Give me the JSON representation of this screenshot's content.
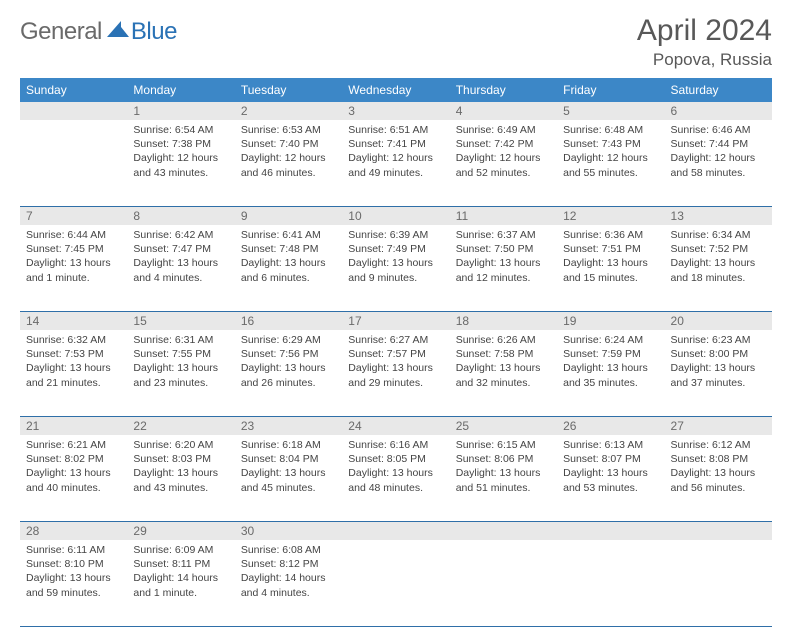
{
  "logo": {
    "word1": "General",
    "word2": "Blue"
  },
  "title": "April 2024",
  "location": "Popova, Russia",
  "colors": {
    "header_bg": "#3c87c7",
    "header_text": "#ffffff",
    "daynum_bg": "#e8e8e8",
    "daynum_text": "#6a6a6a",
    "rule": "#2f6fa8",
    "body_text": "#444444",
    "logo_gray": "#6a6a6a",
    "logo_blue": "#2a72b5"
  },
  "weekdays": [
    "Sunday",
    "Monday",
    "Tuesday",
    "Wednesday",
    "Thursday",
    "Friday",
    "Saturday"
  ],
  "weeks": [
    [
      null,
      {
        "n": "1",
        "sunrise": "6:54 AM",
        "sunset": "7:38 PM",
        "daylight": "12 hours and 43 minutes."
      },
      {
        "n": "2",
        "sunrise": "6:53 AM",
        "sunset": "7:40 PM",
        "daylight": "12 hours and 46 minutes."
      },
      {
        "n": "3",
        "sunrise": "6:51 AM",
        "sunset": "7:41 PM",
        "daylight": "12 hours and 49 minutes."
      },
      {
        "n": "4",
        "sunrise": "6:49 AM",
        "sunset": "7:42 PM",
        "daylight": "12 hours and 52 minutes."
      },
      {
        "n": "5",
        "sunrise": "6:48 AM",
        "sunset": "7:43 PM",
        "daylight": "12 hours and 55 minutes."
      },
      {
        "n": "6",
        "sunrise": "6:46 AM",
        "sunset": "7:44 PM",
        "daylight": "12 hours and 58 minutes."
      }
    ],
    [
      {
        "n": "7",
        "sunrise": "6:44 AM",
        "sunset": "7:45 PM",
        "daylight": "13 hours and 1 minute."
      },
      {
        "n": "8",
        "sunrise": "6:42 AM",
        "sunset": "7:47 PM",
        "daylight": "13 hours and 4 minutes."
      },
      {
        "n": "9",
        "sunrise": "6:41 AM",
        "sunset": "7:48 PM",
        "daylight": "13 hours and 6 minutes."
      },
      {
        "n": "10",
        "sunrise": "6:39 AM",
        "sunset": "7:49 PM",
        "daylight": "13 hours and 9 minutes."
      },
      {
        "n": "11",
        "sunrise": "6:37 AM",
        "sunset": "7:50 PM",
        "daylight": "13 hours and 12 minutes."
      },
      {
        "n": "12",
        "sunrise": "6:36 AM",
        "sunset": "7:51 PM",
        "daylight": "13 hours and 15 minutes."
      },
      {
        "n": "13",
        "sunrise": "6:34 AM",
        "sunset": "7:52 PM",
        "daylight": "13 hours and 18 minutes."
      }
    ],
    [
      {
        "n": "14",
        "sunrise": "6:32 AM",
        "sunset": "7:53 PM",
        "daylight": "13 hours and 21 minutes."
      },
      {
        "n": "15",
        "sunrise": "6:31 AM",
        "sunset": "7:55 PM",
        "daylight": "13 hours and 23 minutes."
      },
      {
        "n": "16",
        "sunrise": "6:29 AM",
        "sunset": "7:56 PM",
        "daylight": "13 hours and 26 minutes."
      },
      {
        "n": "17",
        "sunrise": "6:27 AM",
        "sunset": "7:57 PM",
        "daylight": "13 hours and 29 minutes."
      },
      {
        "n": "18",
        "sunrise": "6:26 AM",
        "sunset": "7:58 PM",
        "daylight": "13 hours and 32 minutes."
      },
      {
        "n": "19",
        "sunrise": "6:24 AM",
        "sunset": "7:59 PM",
        "daylight": "13 hours and 35 minutes."
      },
      {
        "n": "20",
        "sunrise": "6:23 AM",
        "sunset": "8:00 PM",
        "daylight": "13 hours and 37 minutes."
      }
    ],
    [
      {
        "n": "21",
        "sunrise": "6:21 AM",
        "sunset": "8:02 PM",
        "daylight": "13 hours and 40 minutes."
      },
      {
        "n": "22",
        "sunrise": "6:20 AM",
        "sunset": "8:03 PM",
        "daylight": "13 hours and 43 minutes."
      },
      {
        "n": "23",
        "sunrise": "6:18 AM",
        "sunset": "8:04 PM",
        "daylight": "13 hours and 45 minutes."
      },
      {
        "n": "24",
        "sunrise": "6:16 AM",
        "sunset": "8:05 PM",
        "daylight": "13 hours and 48 minutes."
      },
      {
        "n": "25",
        "sunrise": "6:15 AM",
        "sunset": "8:06 PM",
        "daylight": "13 hours and 51 minutes."
      },
      {
        "n": "26",
        "sunrise": "6:13 AM",
        "sunset": "8:07 PM",
        "daylight": "13 hours and 53 minutes."
      },
      {
        "n": "27",
        "sunrise": "6:12 AM",
        "sunset": "8:08 PM",
        "daylight": "13 hours and 56 minutes."
      }
    ],
    [
      {
        "n": "28",
        "sunrise": "6:11 AM",
        "sunset": "8:10 PM",
        "daylight": "13 hours and 59 minutes."
      },
      {
        "n": "29",
        "sunrise": "6:09 AM",
        "sunset": "8:11 PM",
        "daylight": "14 hours and 1 minute."
      },
      {
        "n": "30",
        "sunrise": "6:08 AM",
        "sunset": "8:12 PM",
        "daylight": "14 hours and 4 minutes."
      },
      null,
      null,
      null,
      null
    ]
  ],
  "labels": {
    "sunrise": "Sunrise: ",
    "sunset": "Sunset: ",
    "daylight": "Daylight: "
  }
}
